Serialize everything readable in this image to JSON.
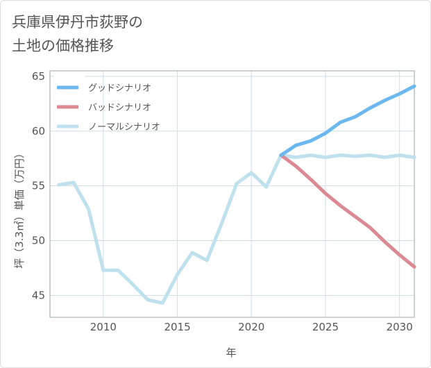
{
  "title_lines": [
    "兵庫県伊丹市荻野の",
    "土地の価格推移"
  ],
  "chart_data": {
    "type": "line",
    "title": "兵庫県伊丹市荻野の 土地の価格推移",
    "xlabel": "年",
    "ylabel": "坪（3.3㎡）単価（万円）",
    "xlim": [
      2006.4,
      2031
    ],
    "ylim": [
      43,
      65.5
    ],
    "x_ticks": [
      2010,
      2015,
      2020,
      2025,
      2030
    ],
    "y_ticks": [
      45,
      50,
      55,
      60,
      65
    ],
    "grid": true,
    "legend_position": "top-left",
    "series": [
      {
        "name": "グッドシナリオ",
        "color": "#6cb8ee",
        "x": [
          2022,
          2023,
          2024,
          2025,
          2026,
          2027,
          2028,
          2029,
          2030,
          2031
        ],
        "y": [
          57.8,
          58.7,
          59.1,
          59.8,
          60.8,
          61.3,
          62.1,
          62.8,
          63.4,
          64.1
        ]
      },
      {
        "name": "バッドシナリオ",
        "color": "#db8a93",
        "x": [
          2022,
          2023,
          2024,
          2025,
          2026,
          2027,
          2028,
          2029,
          2030,
          2031
        ],
        "y": [
          57.8,
          56.8,
          55.6,
          54.3,
          53.2,
          52.2,
          51.2,
          49.9,
          48.7,
          47.6
        ]
      },
      {
        "name": "ノーマルシナリオ",
        "color": "#bfe1ee",
        "x": [
          2007,
          2008,
          2009,
          2010,
          2011,
          2012,
          2013,
          2014,
          2015,
          2016,
          2017,
          2018,
          2019,
          2020,
          2021,
          2022,
          2023,
          2024,
          2025,
          2026,
          2027,
          2028,
          2029,
          2030,
          2031
        ],
        "y": [
          55.1,
          55.3,
          52.9,
          47.3,
          47.3,
          46.0,
          44.6,
          44.3,
          46.9,
          48.9,
          48.2,
          51.6,
          55.2,
          56.2,
          54.9,
          57.8,
          57.6,
          57.8,
          57.6,
          57.8,
          57.7,
          57.8,
          57.6,
          57.8,
          57.6
        ]
      }
    ]
  }
}
